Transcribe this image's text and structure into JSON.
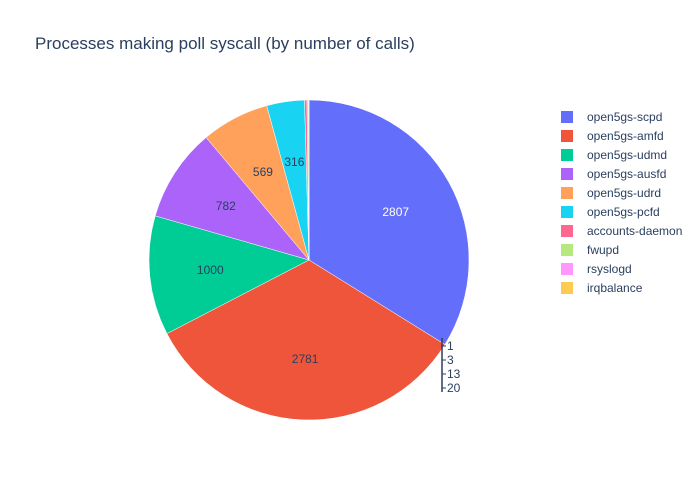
{
  "colors": [
    "#636efa",
    "#ef553b",
    "#00cc96",
    "#ab63fa",
    "#ffa15a",
    "#19d3f3",
    "#ff6692",
    "#b6e880",
    "#ff97ff",
    "#fecb52"
  ],
  "chart_data": {
    "type": "pie",
    "title": "Processes making poll syscall (by number of calls)",
    "labels": [
      "open5gs-scpd",
      "open5gs-amfd",
      "open5gs-udmd",
      "open5gs-ausfd",
      "open5gs-udrd",
      "open5gs-pcfd",
      "accounts-daemon",
      "fwupd",
      "rsyslogd",
      "irqbalance"
    ],
    "values": [
      2807,
      2781,
      1000,
      782,
      569,
      316,
      20,
      13,
      3,
      1
    ],
    "legend_position": "right"
  }
}
